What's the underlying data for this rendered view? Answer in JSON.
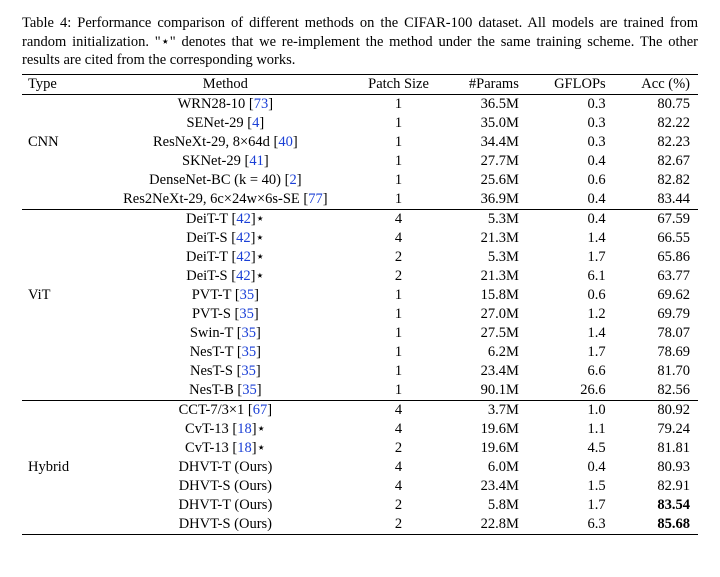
{
  "caption": {
    "prefix": "Table 4: ",
    "body": "Performance comparison of different methods on the CIFAR-100 dataset. All models are trained from random initialization. \"⋆\" denotes that we re-implement the method under the same training scheme. The other results are cited from the corresponding works."
  },
  "headers": {
    "type": "Type",
    "method": "Method",
    "patch": "Patch Size",
    "params": "#Params",
    "gflops": "GFLOPs",
    "acc": "Acc (%)"
  },
  "groups": [
    {
      "type": "CNN",
      "rows": [
        {
          "method_pre": "WRN28-10 [",
          "cite": "73",
          "method_post": "]",
          "patch": "1",
          "params": "36.5M",
          "gflops": "0.3",
          "acc": "80.75"
        },
        {
          "method_pre": "SENet-29 [",
          "cite": "4",
          "method_post": "]",
          "patch": "1",
          "params": "35.0M",
          "gflops": "0.3",
          "acc": "82.22"
        },
        {
          "method_pre": "ResNeXt-29, 8×64d [",
          "cite": "40",
          "method_post": "]",
          "patch": "1",
          "params": "34.4M",
          "gflops": "0.3",
          "acc": "82.23"
        },
        {
          "method_pre": "SKNet-29 [",
          "cite": "41",
          "method_post": "]",
          "patch": "1",
          "params": "27.7M",
          "gflops": "0.4",
          "acc": "82.67"
        },
        {
          "method_pre": "DenseNet-BC (k = 40) [",
          "cite": "2",
          "method_post": "]",
          "patch": "1",
          "params": "25.6M",
          "gflops": "0.6",
          "acc": "82.82"
        },
        {
          "method_pre": "Res2NeXt-29, 6c×24w×6s-SE [",
          "cite": "77",
          "method_post": "]",
          "patch": "1",
          "params": "36.9M",
          "gflops": "0.4",
          "acc": "83.44"
        }
      ]
    },
    {
      "type": "ViT",
      "rows": [
        {
          "method_pre": "DeiT-T [",
          "cite": "42",
          "method_post": "]⋆",
          "patch": "4",
          "params": "5.3M",
          "gflops": "0.4",
          "acc": "67.59"
        },
        {
          "method_pre": "DeiT-S [",
          "cite": "42",
          "method_post": "]⋆",
          "patch": "4",
          "params": "21.3M",
          "gflops": "1.4",
          "acc": "66.55"
        },
        {
          "method_pre": "DeiT-T [",
          "cite": "42",
          "method_post": "]⋆",
          "patch": "2",
          "params": "5.3M",
          "gflops": "1.7",
          "acc": "65.86"
        },
        {
          "method_pre": "DeiT-S [",
          "cite": "42",
          "method_post": "]⋆",
          "patch": "2",
          "params": "21.3M",
          "gflops": "6.1",
          "acc": "63.77"
        },
        {
          "method_pre": "PVT-T [",
          "cite": "35",
          "method_post": "]",
          "patch": "1",
          "params": "15.8M",
          "gflops": "0.6",
          "acc": "69.62"
        },
        {
          "method_pre": "PVT-S [",
          "cite": "35",
          "method_post": "]",
          "patch": "1",
          "params": "27.0M",
          "gflops": "1.2",
          "acc": "69.79"
        },
        {
          "method_pre": "Swin-T [",
          "cite": "35",
          "method_post": "]",
          "patch": "1",
          "params": "27.5M",
          "gflops": "1.4",
          "acc": "78.07"
        },
        {
          "method_pre": "NesT-T [",
          "cite": "35",
          "method_post": "]",
          "patch": "1",
          "params": "6.2M",
          "gflops": "1.7",
          "acc": "78.69"
        },
        {
          "method_pre": "NesT-S [",
          "cite": "35",
          "method_post": "]",
          "patch": "1",
          "params": "23.4M",
          "gflops": "6.6",
          "acc": "81.70"
        },
        {
          "method_pre": "NesT-B [",
          "cite": "35",
          "method_post": "]",
          "patch": "1",
          "params": "90.1M",
          "gflops": "26.6",
          "acc": "82.56"
        }
      ]
    },
    {
      "type": "Hybrid",
      "rows": [
        {
          "method_pre": "CCT-7/3×1 [",
          "cite": "67",
          "method_post": "]",
          "patch": "4",
          "params": "3.7M",
          "gflops": "1.0",
          "acc": "80.92"
        },
        {
          "method_pre": "CvT-13 [",
          "cite": "18",
          "method_post": "]⋆",
          "patch": "4",
          "params": "19.6M",
          "gflops": "1.1",
          "acc": "79.24"
        },
        {
          "method_pre": "CvT-13 [",
          "cite": "18",
          "method_post": "]⋆",
          "patch": "2",
          "params": "19.6M",
          "gflops": "4.5",
          "acc": "81.81"
        },
        {
          "method_pre": "DHVT-T (Ours)",
          "cite": "",
          "method_post": "",
          "patch": "4",
          "params": "6.0M",
          "gflops": "0.4",
          "acc": "80.93"
        },
        {
          "method_pre": "DHVT-S (Ours)",
          "cite": "",
          "method_post": "",
          "patch": "4",
          "params": "23.4M",
          "gflops": "1.5",
          "acc": "82.91"
        },
        {
          "method_pre": "DHVT-T (Ours)",
          "cite": "",
          "method_post": "",
          "patch": "2",
          "params": "5.8M",
          "gflops": "1.7",
          "acc": "83.54",
          "acc_bold": true
        },
        {
          "method_pre": "DHVT-S (Ours)",
          "cite": "",
          "method_post": "",
          "patch": "2",
          "params": "22.8M",
          "gflops": "6.3",
          "acc": "85.68",
          "acc_bold": true
        }
      ]
    }
  ]
}
